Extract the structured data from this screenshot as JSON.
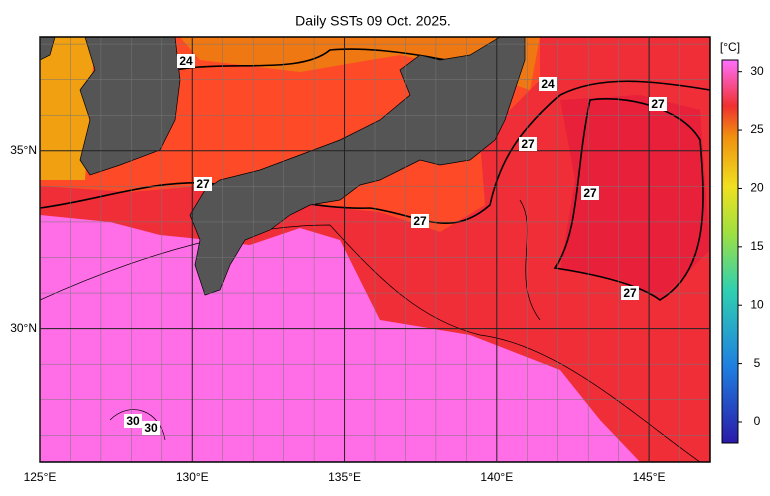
{
  "chart_data": {
    "type": "map",
    "title": "Daily SSTs 09 Oct. 2025.",
    "xlim": [
      125,
      147
    ],
    "ylim": [
      26.25,
      38.2
    ],
    "xticks": [
      {
        "value": 125,
        "label": "125°E"
      },
      {
        "value": 130,
        "label": "130°E"
      },
      {
        "value": 135,
        "label": "135°E"
      },
      {
        "value": 140,
        "label": "140°E"
      },
      {
        "value": 145,
        "label": "145°E"
      }
    ],
    "yticks": [
      {
        "value": 30,
        "label": "30°N"
      },
      {
        "value": 35,
        "label": "35°N"
      }
    ],
    "colorbar": {
      "unit": "[°C]",
      "range": [
        -1.8,
        31
      ],
      "ticks": [
        0,
        5,
        10,
        15,
        20,
        25,
        30
      ]
    },
    "contour_labels": [
      24,
      24,
      27,
      27,
      27,
      27,
      27,
      27,
      30,
      30
    ]
  }
}
